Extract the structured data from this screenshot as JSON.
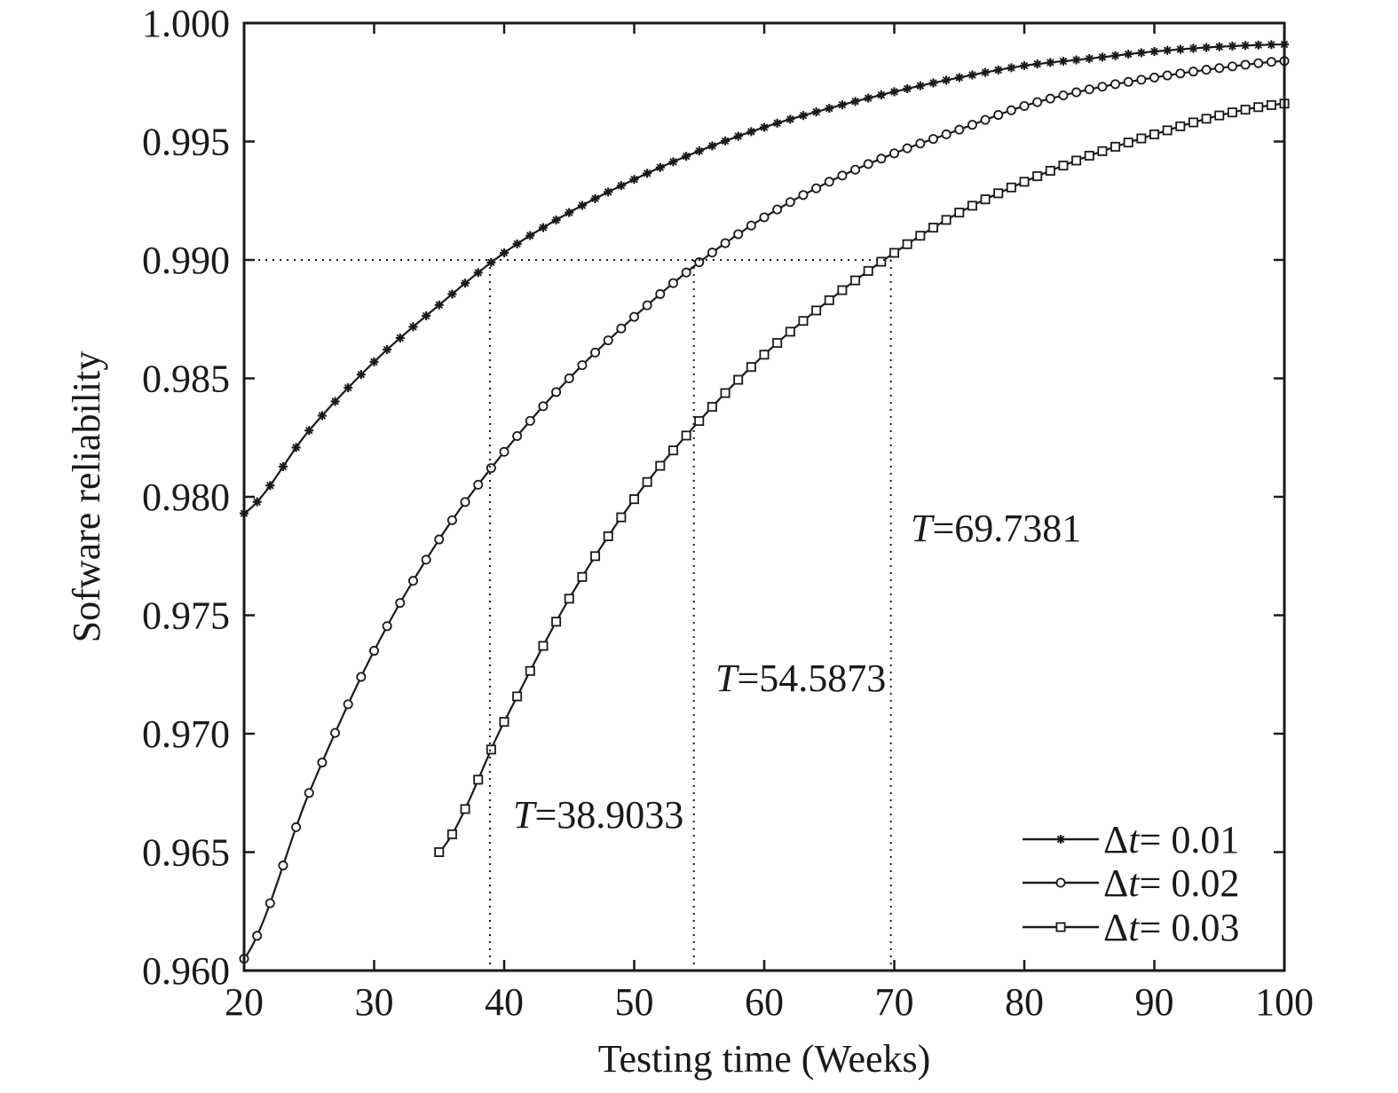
{
  "chart_data": {
    "type": "line",
    "xlabel": "Testing time (Weeks)",
    "ylabel": "Sofware reliability",
    "xlim": [
      20,
      100
    ],
    "ylim": [
      0.96,
      1.0
    ],
    "x_ticks": [
      "20",
      "30",
      "40",
      "50",
      "60",
      "70",
      "80",
      "90",
      "100"
    ],
    "y_ticks": [
      "0.960",
      "0.965",
      "0.970",
      "0.975",
      "0.980",
      "0.985",
      "0.990",
      "0.995",
      "1.000"
    ],
    "grid": false,
    "legend_position": "bottom-right",
    "threshold": 0.99,
    "x": [
      20,
      25,
      30,
      35,
      40,
      45,
      50,
      55,
      60,
      65,
      70,
      75,
      80,
      85,
      90,
      95,
      100
    ],
    "series": [
      {
        "name": "0.01",
        "legend_prefix": "Δ",
        "legend_var": "t",
        "legend_suffix": "= 0.01",
        "marker": "star",
        "values": [
          0.9793,
          0.9828,
          0.9857,
          0.9881,
          0.9903,
          0.992,
          0.9934,
          0.9946,
          0.9956,
          0.9964,
          0.9971,
          0.9977,
          0.9982,
          0.9985,
          0.9988,
          0.999,
          0.9991
        ]
      },
      {
        "name": "0.02",
        "legend_prefix": "Δ",
        "legend_var": "t",
        "legend_suffix": "= 0.02",
        "marker": "circle",
        "values": [
          0.9605,
          0.9675,
          0.9735,
          0.9782,
          0.9819,
          0.985,
          0.9876,
          0.9899,
          0.9918,
          0.9933,
          0.9945,
          0.9955,
          0.9965,
          0.9972,
          0.9977,
          0.9981,
          0.9984
        ]
      },
      {
        "name": "0.03",
        "legend_prefix": "Δ",
        "legend_var": "t",
        "legend_suffix": "= 0.03",
        "marker": "square",
        "values": [
          null,
          null,
          null,
          0.965,
          0.9705,
          0.9757,
          0.9799,
          0.9832,
          0.986,
          0.9883,
          0.9903,
          0.992,
          0.9933,
          0.9944,
          0.9953,
          0.9961,
          0.9966
        ]
      }
    ],
    "annotations": [
      {
        "prefix": "T",
        "text": "=38.9033",
        "x": 38.9033
      },
      {
        "prefix": "T",
        "text": "=54.5873",
        "x": 54.5873
      },
      {
        "prefix": "T",
        "text": "=69.7381",
        "x": 69.7381
      }
    ]
  }
}
